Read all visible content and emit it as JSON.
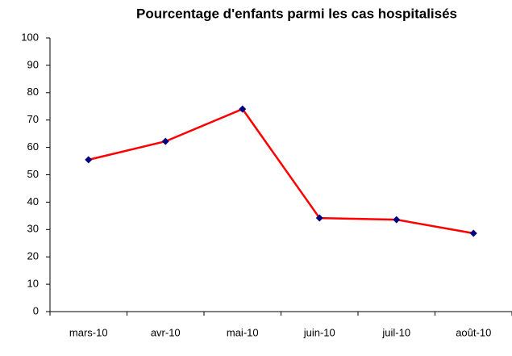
{
  "chart_data": {
    "type": "line",
    "title": "Pourcentage d'enfants parmi les cas hospitalisés",
    "categories": [
      "mars-10",
      "avr-10",
      "mai-10",
      "juin-10",
      "juil-10",
      "août-10"
    ],
    "series": [
      {
        "name": "Pourcentage",
        "color": "#ff0000",
        "marker_color": "#000080",
        "values": [
          55.5,
          62.2,
          74,
          34.2,
          33.6,
          28.6
        ]
      }
    ],
    "ylim": [
      0,
      100
    ],
    "yticks": [
      0,
      10,
      20,
      30,
      40,
      50,
      60,
      70,
      80,
      90,
      100
    ],
    "grid": false
  }
}
